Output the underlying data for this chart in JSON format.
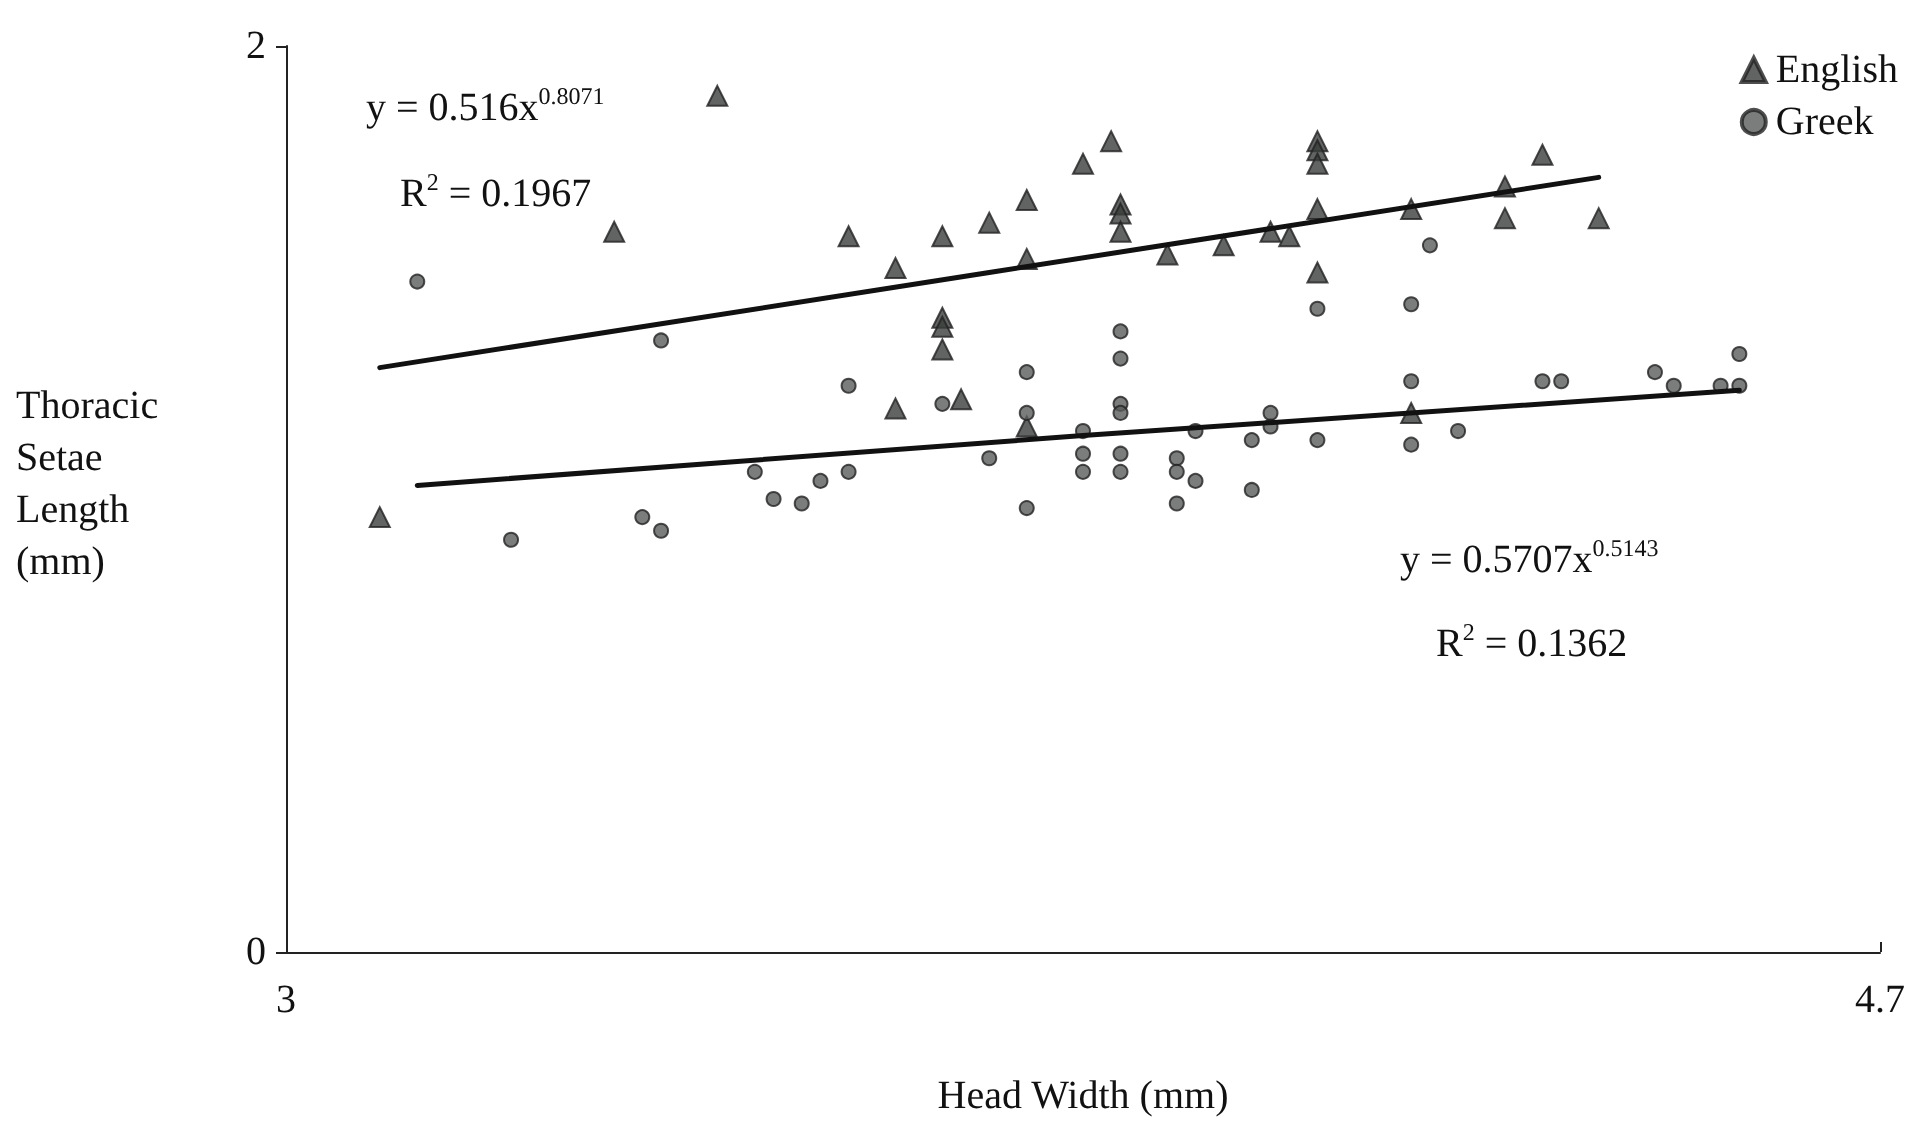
{
  "chart_data": {
    "type": "scatter",
    "xlabel": "Head Width (mm)",
    "ylabel": "Thoracic Setae Length (mm)",
    "xlim": [
      3,
      4.7
    ],
    "xticks": [
      3,
      4.7
    ],
    "ylim": [
      0,
      2
    ],
    "yticks": [
      0,
      2
    ],
    "grid": false,
    "legend": "top right",
    "annotations": [
      "y = 0.516x$^{0.8071}$",
      "R$^{2}$ = 0.1967",
      "y = 0.5707x$^{0.5143}$",
      "R$^{2}$ = 0.1362"
    ],
    "series": [
      {
        "name": "English",
        "marker": "triangle",
        "color": "#3a3d3b",
        "x": [
          3.1,
          3.46,
          3.35,
          3.6,
          3.65,
          3.7,
          3.75,
          3.79,
          3.79,
          3.85,
          3.88,
          3.89,
          3.89,
          3.89,
          3.94,
          4.0,
          4.05,
          4.07,
          4.1,
          4.1,
          4.1,
          4.1,
          4.1,
          3.7,
          3.7,
          3.7,
          3.65,
          3.72,
          3.79,
          4.2,
          4.3,
          4.3,
          4.34,
          4.4,
          4.2
        ],
        "values": [
          0.96,
          1.89,
          1.59,
          1.58,
          1.51,
          1.58,
          1.61,
          1.66,
          1.53,
          1.74,
          1.79,
          1.65,
          1.63,
          1.59,
          1.54,
          1.56,
          1.59,
          1.58,
          1.79,
          1.77,
          1.74,
          1.64,
          1.5,
          1.4,
          1.38,
          1.33,
          1.2,
          1.22,
          1.16,
          1.64,
          1.69,
          1.62,
          1.76,
          1.62,
          1.19
        ]
      },
      {
        "name": "Greek",
        "marker": "circle",
        "color": "#5a5d5b",
        "x": [
          3.14,
          3.4,
          3.6,
          3.5,
          3.52,
          3.55,
          3.57,
          3.6,
          3.38,
          3.4,
          3.24,
          3.7,
          3.75,
          3.79,
          3.79,
          3.79,
          3.85,
          3.85,
          3.85,
          3.89,
          3.89,
          3.89,
          3.89,
          3.89,
          3.89,
          3.95,
          3.95,
          3.95,
          3.97,
          3.97,
          4.03,
          4.03,
          4.05,
          4.05,
          4.1,
          4.1,
          4.22,
          4.2,
          4.2,
          4.2,
          4.25,
          4.34,
          4.36,
          4.46,
          4.48,
          4.53,
          4.55,
          4.55
        ],
        "values": [
          1.48,
          1.35,
          1.25,
          1.06,
          1.0,
          0.99,
          1.04,
          1.06,
          0.96,
          0.93,
          0.91,
          1.21,
          1.09,
          1.28,
          1.19,
          0.98,
          1.15,
          1.1,
          1.06,
          1.37,
          1.31,
          1.21,
          1.19,
          1.1,
          1.06,
          1.09,
          1.06,
          0.99,
          1.04,
          1.15,
          1.13,
          1.02,
          1.19,
          1.16,
          1.42,
          1.13,
          1.56,
          1.43,
          1.26,
          1.12,
          1.15,
          1.26,
          1.26,
          1.28,
          1.25,
          1.25,
          1.25,
          1.32
        ]
      },
      {
        "type": "line",
        "line_style": "solid",
        "marker": "none",
        "color": "#111111",
        "x": [
          3.1,
          3.75,
          4.4
        ],
        "values": [
          1.29,
          1.5,
          1.71
        ]
      },
      {
        "type": "line",
        "line_style": "solid",
        "marker": "none",
        "color": "#111111",
        "x": [
          3.14,
          3.85,
          4.55
        ],
        "values": [
          1.03,
          1.14,
          1.24
        ]
      }
    ]
  }
}
